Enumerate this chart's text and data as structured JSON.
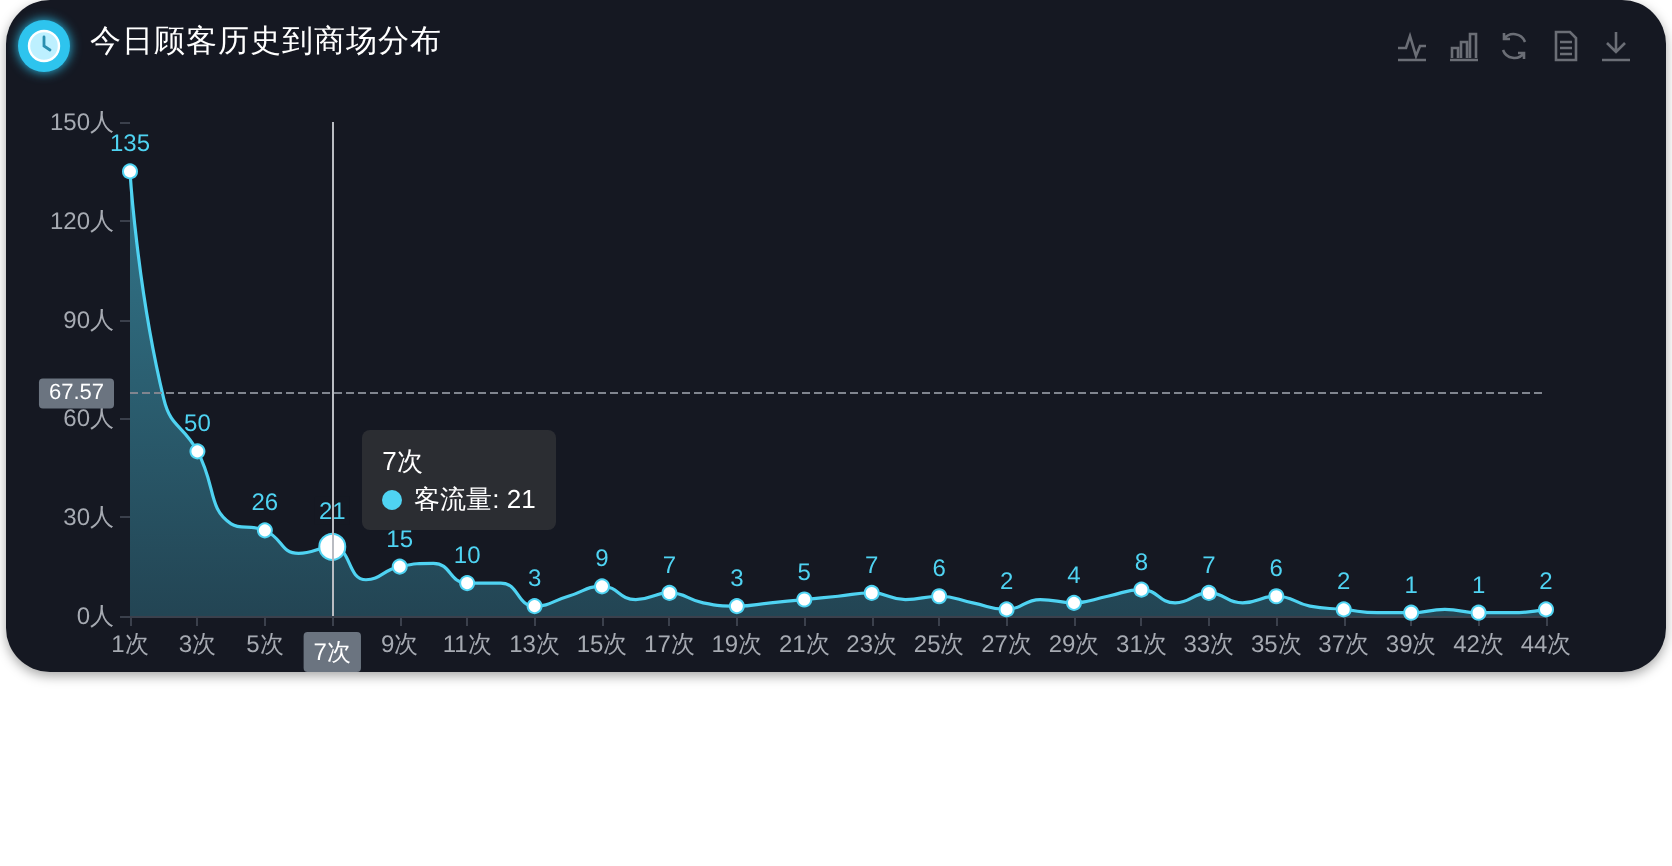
{
  "chart_data": {
    "type": "area",
    "title": "今日顾客历史到商场分布",
    "categories": [
      "1次",
      null,
      "3次",
      null,
      "5次",
      null,
      "7次",
      null,
      "9次",
      null,
      "11次",
      null,
      "13次",
      null,
      "15次",
      null,
      "17次",
      null,
      "19次",
      null,
      "21次",
      null,
      "23次",
      null,
      "25次",
      null,
      "27次",
      null,
      "29次",
      null,
      "31次",
      null,
      "33次",
      null,
      "35次",
      null,
      "37次",
      null,
      "39次",
      null,
      "42次",
      null,
      "44次"
    ],
    "series": [
      {
        "color": "#4fd3f2",
        "values": [
          135,
          66,
          50,
          28,
          26,
          19,
          21,
          11,
          15,
          16,
          10,
          10,
          3,
          6,
          9,
          5,
          7,
          4,
          3,
          4,
          5,
          6,
          7,
          5,
          6,
          4,
          2,
          5,
          4,
          6,
          8,
          4,
          7,
          4,
          6,
          3,
          2,
          1,
          1,
          2,
          1,
          1,
          2
        ],
        "value_labels": [
          "135",
          null,
          "50",
          null,
          "26",
          null,
          "21",
          null,
          "15",
          null,
          "10",
          null,
          "3",
          null,
          "9",
          null,
          "7",
          null,
          "3",
          null,
          "5",
          null,
          "7",
          null,
          "6",
          null,
          "2",
          null,
          "4",
          null,
          "8",
          null,
          "7",
          null,
          "6",
          null,
          "2",
          null,
          "1",
          null,
          "1",
          null,
          "2"
        ]
      }
    ],
    "ylim": [
      0,
      150
    ],
    "yticks": [
      {
        "value": 0,
        "label": "0人"
      },
      {
        "value": 30,
        "label": "30人"
      },
      {
        "value": 60,
        "label": "60人"
      },
      {
        "value": 90,
        "label": "90人"
      },
      {
        "value": 120,
        "label": "120人"
      },
      {
        "value": 150,
        "label": "150人"
      }
    ],
    "marker": "circle",
    "ref_lines": [
      {
        "axis": "x",
        "value": "7次",
        "color": "#b9bcc2"
      },
      {
        "axis": "y",
        "value": 67.57,
        "label": "67.57",
        "line_style": "dashed",
        "color": "#80858f"
      }
    ],
    "annotations": [
      "7次",
      "客流量: 21"
    ]
  }
}
